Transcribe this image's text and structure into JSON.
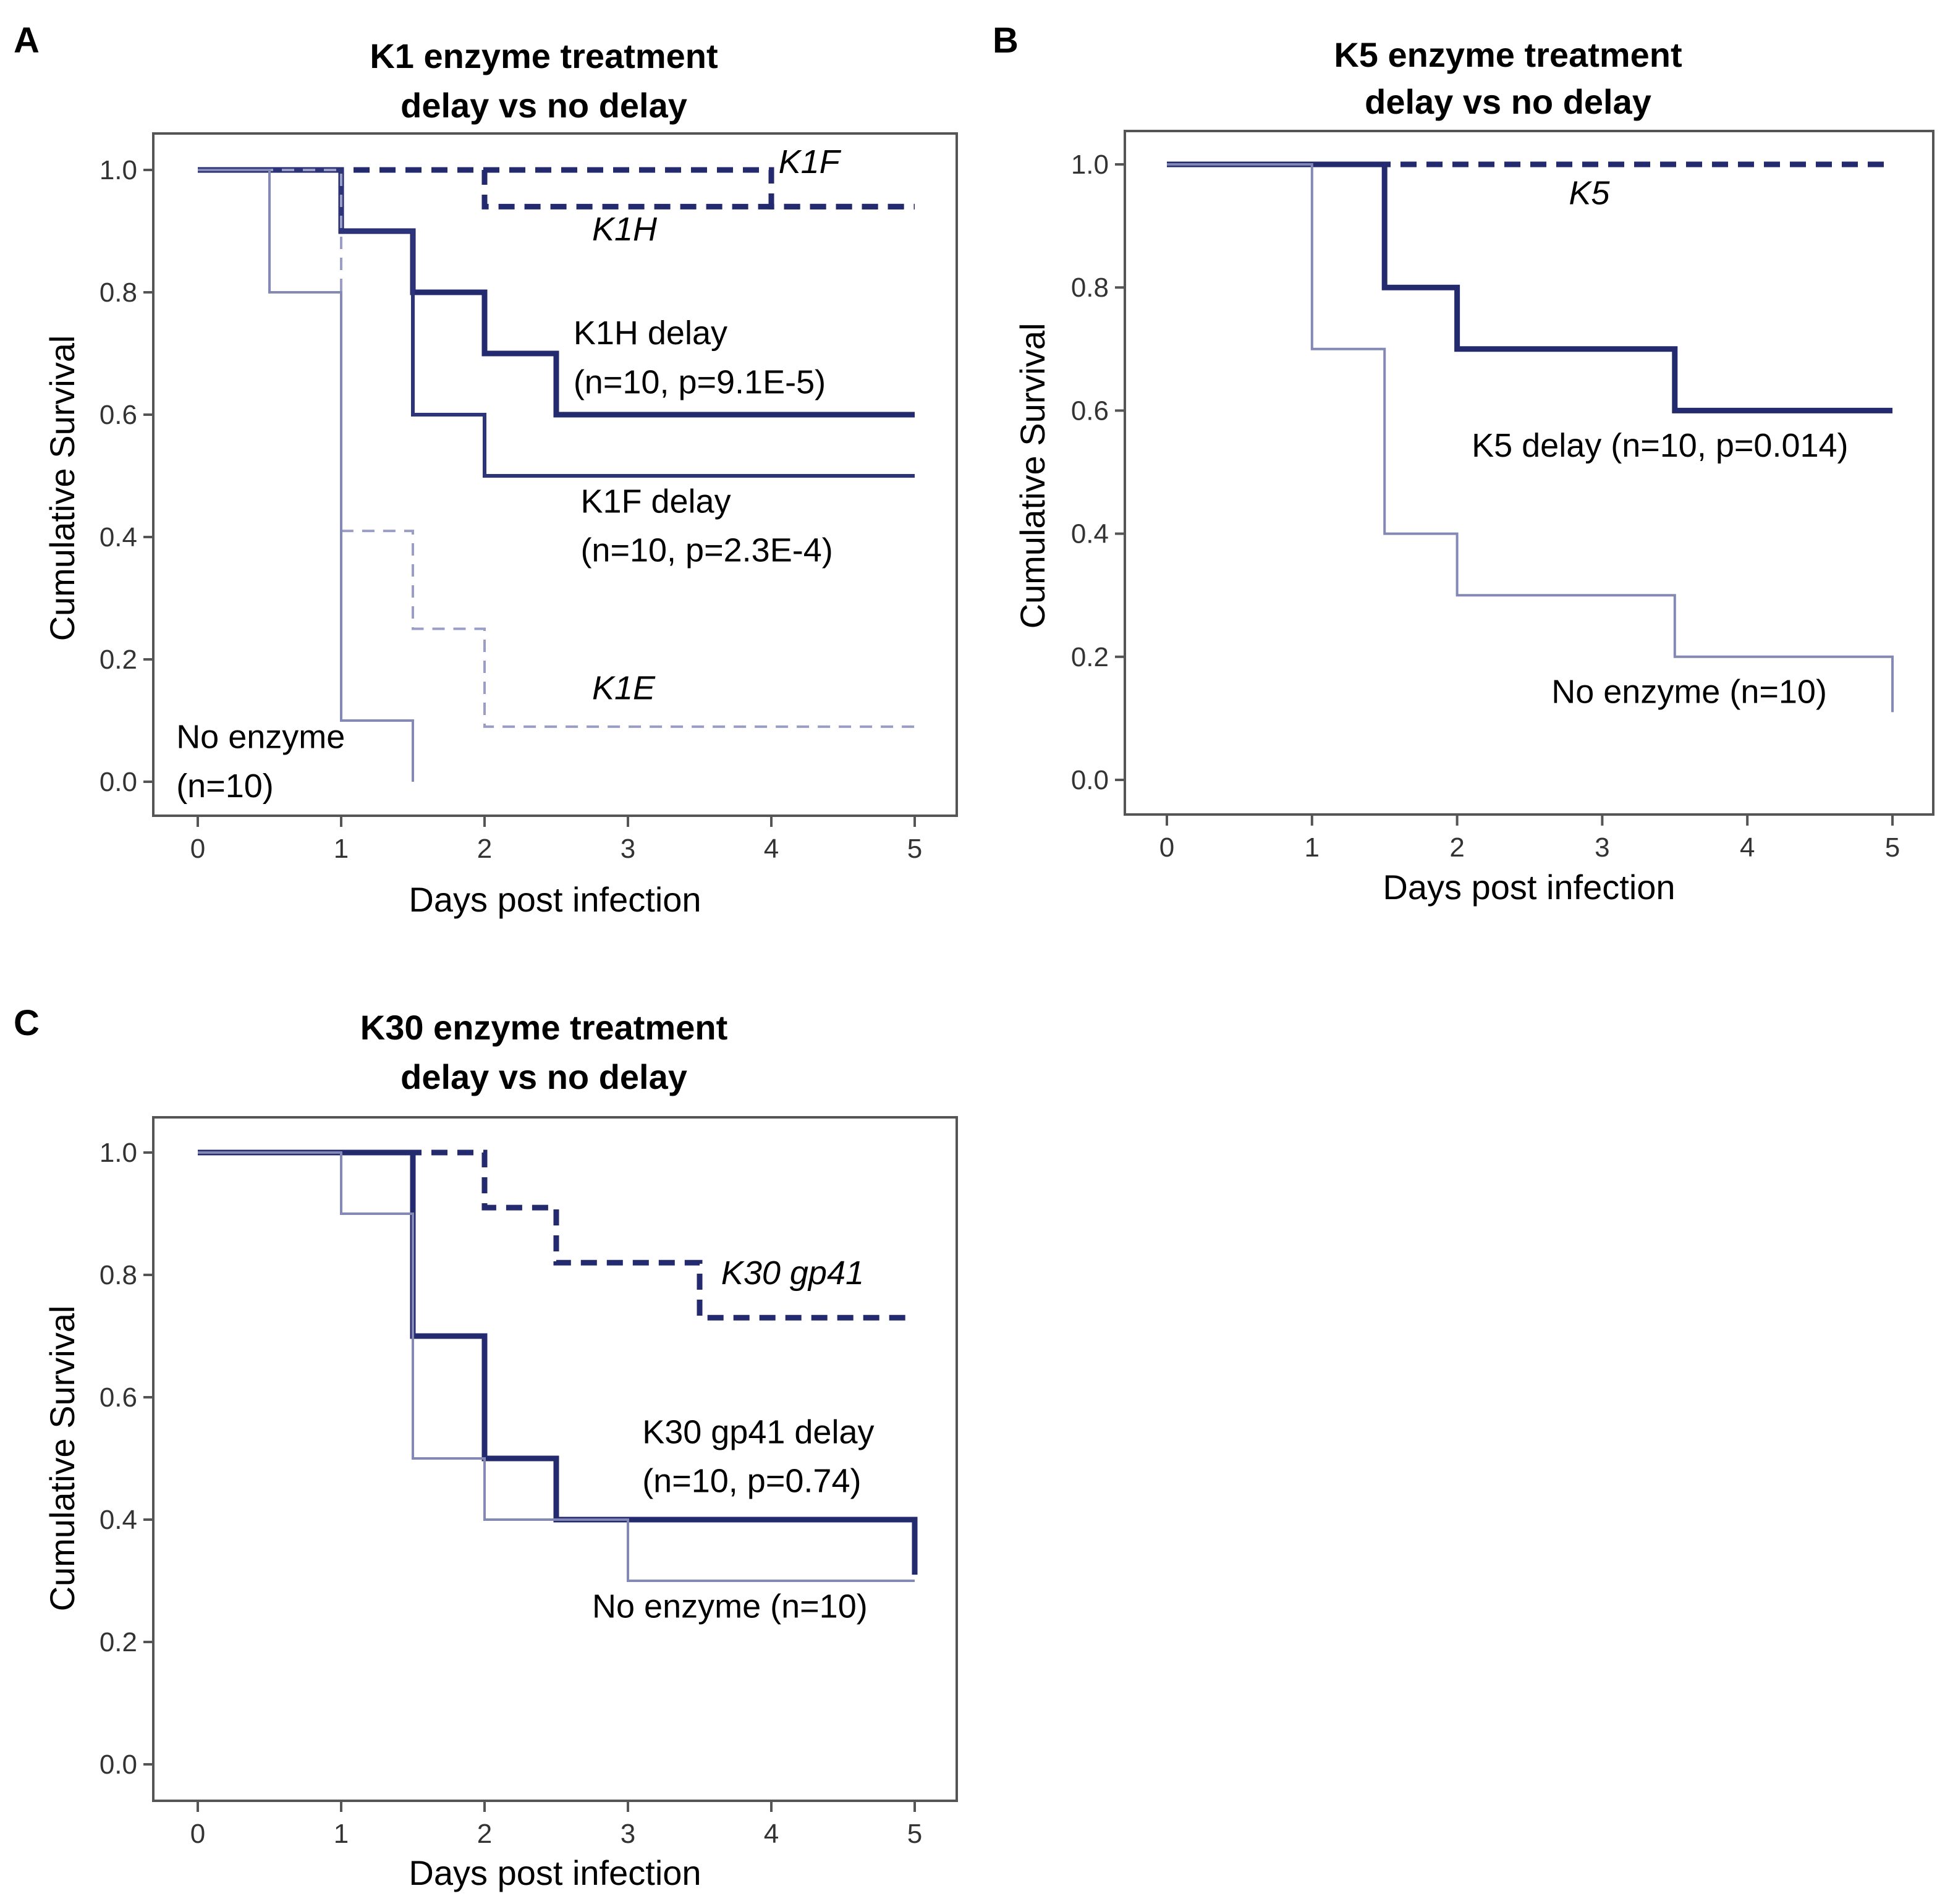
{
  "chart_data": [
    {
      "panel": "A",
      "type": "line",
      "title": [
        "K1 enzyme treatment",
        "delay vs no delay"
      ],
      "xlabel": "Days post infection",
      "ylabel": "Cumulative  Survival",
      "xlim": [
        0,
        5
      ],
      "ylim": [
        0,
        1
      ],
      "xticks": [
        "0",
        "1",
        "2",
        "3",
        "4",
        "5"
      ],
      "yticks": [
        "0.0",
        "0.2",
        "0.4",
        "0.6",
        "0.8",
        "1.0"
      ],
      "series": [
        {
          "name": "K1F",
          "style": "dash-bold",
          "x": [
            0,
            2,
            2,
            4,
            4,
            5
          ],
          "y": [
            1.0,
            1.0,
            1.0,
            1.0,
            0.94,
            0.94
          ]
        },
        {
          "name": "K1H",
          "style": "dash-bold",
          "x": [
            0,
            2,
            2,
            5
          ],
          "y": [
            1.0,
            1.0,
            0.94,
            0.94
          ]
        },
        {
          "name": "K1H delay",
          "style": "solid-bold",
          "x": [
            0,
            1,
            1,
            1.5,
            1.5,
            2,
            2,
            2.5,
            2.5,
            5
          ],
          "y": [
            1.0,
            1.0,
            0.9,
            0.9,
            0.8,
            0.8,
            0.7,
            0.7,
            0.6,
            0.6
          ]
        },
        {
          "name": "K1F delay",
          "style": "solid-mid",
          "x": [
            0,
            1,
            1,
            1.5,
            1.5,
            2,
            2,
            5
          ],
          "y": [
            1.0,
            1.0,
            0.9,
            0.9,
            0.6,
            0.6,
            0.5,
            0.5
          ]
        },
        {
          "name": "K1E",
          "style": "dash-thin",
          "x": [
            0,
            1,
            1,
            1.5,
            1.5,
            2,
            2,
            5
          ],
          "y": [
            1.0,
            1.0,
            0.41,
            0.41,
            0.25,
            0.25,
            0.09,
            0.09
          ]
        },
        {
          "name": "No enzyme",
          "style": "solid-thin",
          "x": [
            0,
            0.5,
            0.5,
            1,
            1,
            1.5,
            1.5
          ],
          "y": [
            1.0,
            1.0,
            0.8,
            0.8,
            0.1,
            0.1,
            0.0
          ]
        }
      ],
      "annotations": [
        {
          "text": "K1F",
          "italic": true,
          "x": 4.05,
          "y": 0.995
        },
        {
          "text": "K1H",
          "italic": true,
          "x": 2.75,
          "y": 0.885
        },
        {
          "text": "K1H delay",
          "italic": false,
          "x": 2.62,
          "y": 0.715
        },
        {
          "text": "(n=10,  p=9.1E-5)",
          "italic": false,
          "x": 2.62,
          "y": 0.635
        },
        {
          "text": "K1F delay",
          "italic": false,
          "x": 2.67,
          "y": 0.44
        },
        {
          "text": "(n=10,  p=2.3E-4)",
          "italic": false,
          "x": 2.67,
          "y": 0.36
        },
        {
          "text": "K1E",
          "italic": true,
          "x": 2.75,
          "y": 0.135
        },
        {
          "text": "No enzyme",
          "italic": false,
          "x": -0.15,
          "y": 0.055
        },
        {
          "text": "(n=10)",
          "italic": false,
          "x": -0.15,
          "y": -0.025
        }
      ]
    },
    {
      "panel": "B",
      "type": "line",
      "title": [
        "K5 enzyme treatment",
        "delay vs no delay"
      ],
      "xlabel": "Days post infection",
      "ylabel": "Cumulative  Survival",
      "xlim": [
        0,
        5
      ],
      "ylim": [
        0,
        1
      ],
      "xticks": [
        "0",
        "1",
        "2",
        "3",
        "4",
        "5"
      ],
      "yticks": [
        "0.0",
        "0.2",
        "0.4",
        "0.6",
        "0.8",
        "1.0"
      ],
      "series": [
        {
          "name": "K5",
          "style": "dash-bold",
          "x": [
            0,
            5
          ],
          "y": [
            1.0,
            1.0
          ]
        },
        {
          "name": "K5 delay",
          "style": "solid-bold",
          "x": [
            0,
            1.5,
            1.5,
            2,
            2,
            3.5,
            3.5,
            5
          ],
          "y": [
            1.0,
            1.0,
            0.8,
            0.8,
            0.7,
            0.7,
            0.6,
            0.6
          ]
        },
        {
          "name": "No enzyme",
          "style": "solid-thin",
          "x": [
            0,
            1,
            1,
            1.5,
            1.5,
            2,
            2,
            3.5,
            3.5,
            5,
            5
          ],
          "y": [
            1.0,
            1.0,
            0.7,
            0.7,
            0.4,
            0.4,
            0.3,
            0.3,
            0.2,
            0.2,
            0.11
          ]
        }
      ],
      "annotations": [
        {
          "text": "K5",
          "italic": true,
          "x": 2.77,
          "y": 0.935
        },
        {
          "text": "K5 delay (n=10,  p=0.014)",
          "italic": false,
          "x": 2.1,
          "y": 0.525
        },
        {
          "text": "No enzyme (n=10)",
          "italic": false,
          "x": 2.65,
          "y": 0.125
        }
      ]
    },
    {
      "panel": "C",
      "type": "line",
      "title": [
        "K30 enzyme treatment",
        "delay vs no delay"
      ],
      "xlabel": "Days post infection",
      "ylabel": "Cumulative  Survival",
      "xlim": [
        0,
        5
      ],
      "ylim": [
        0,
        1
      ],
      "xticks": [
        "0",
        "1",
        "2",
        "3",
        "4",
        "5"
      ],
      "yticks": [
        "0.0",
        "0.2",
        "0.4",
        "0.6",
        "0.8",
        "1.0"
      ],
      "series": [
        {
          "name": "K30 gp41",
          "style": "dash-bold",
          "x": [
            0,
            2,
            2,
            2.5,
            2.5,
            3.5,
            3.5,
            5
          ],
          "y": [
            1.0,
            1.0,
            0.91,
            0.91,
            0.82,
            0.82,
            0.73,
            0.73
          ]
        },
        {
          "name": "K30 gp41 delay",
          "style": "solid-bold",
          "x": [
            0,
            1.5,
            1.5,
            2,
            2,
            2.5,
            2.5,
            5,
            5
          ],
          "y": [
            1.0,
            1.0,
            0.7,
            0.7,
            0.5,
            0.5,
            0.4,
            0.4,
            0.31
          ]
        },
        {
          "name": "No enzyme",
          "style": "solid-thin",
          "x": [
            0,
            1,
            1,
            1.5,
            1.5,
            2,
            2,
            3,
            3,
            5
          ],
          "y": [
            1.0,
            1.0,
            0.9,
            0.9,
            0.5,
            0.5,
            0.4,
            0.4,
            0.3,
            0.3
          ]
        }
      ],
      "annotations": [
        {
          "text": "K30 gp41",
          "italic": true,
          "x": 3.65,
          "y": 0.785
        },
        {
          "text": "K30 gp41 delay",
          "italic": false,
          "x": 3.1,
          "y": 0.525
        },
        {
          "text": "(n=10,  p=0.74)",
          "italic": false,
          "x": 3.1,
          "y": 0.445
        },
        {
          "text": "No enzyme (n=10)",
          "italic": false,
          "x": 2.75,
          "y": 0.24
        }
      ]
    }
  ]
}
